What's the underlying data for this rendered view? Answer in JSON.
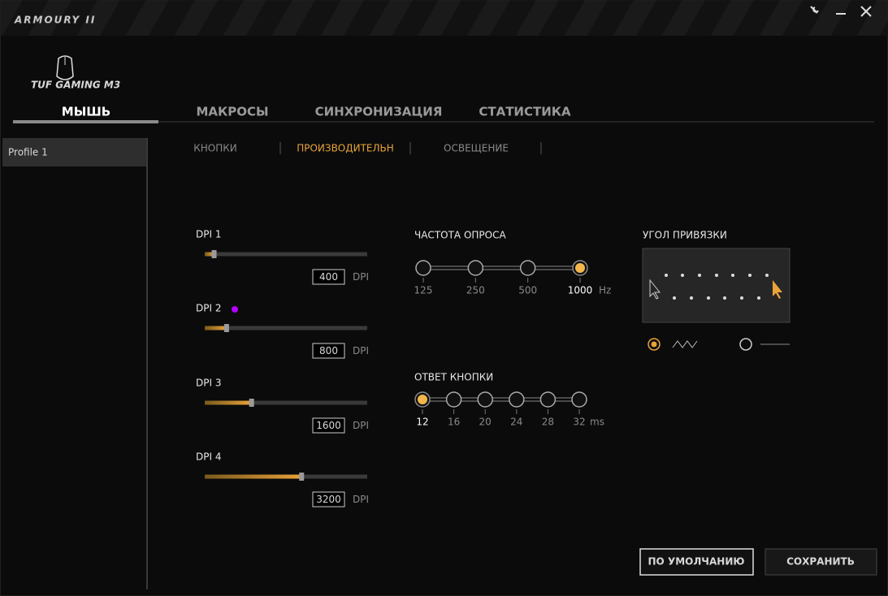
{
  "app": {
    "title": "ARMOURY II"
  },
  "device": {
    "name": "TUF GAMING M3"
  },
  "tabs": [
    "МЫШЬ",
    "МАКРОСЫ",
    "СИНХРОНИЗАЦИЯ",
    "СТАТИСТИКА"
  ],
  "profiles": [
    "Profile 1"
  ],
  "subtabs": [
    "КНОПКИ",
    "ПРОИЗВОДИТЕЛЬН",
    "ОСВЕЩЕНИЕ"
  ],
  "dpi": {
    "unit": "DPI",
    "range": [
      100,
      5300
    ],
    "levels": [
      {
        "label": "DPI 1",
        "value": 400
      },
      {
        "label": "DPI 2",
        "value": 800,
        "indicator": "#b400ff"
      },
      {
        "label": "DPI 3",
        "value": 1600
      },
      {
        "label": "DPI 4",
        "value": 3200
      }
    ]
  },
  "polling": {
    "title": "ЧАСТОТА ОПРОСА",
    "options": [
      125,
      250,
      500,
      1000
    ],
    "selected": 1000,
    "unit": "Hz"
  },
  "response": {
    "title": "ОТВЕТ КНОПКИ",
    "options": [
      12,
      16,
      20,
      24,
      28,
      32
    ],
    "selected": 12,
    "unit": "ms"
  },
  "angle": {
    "title": "УГОЛ ПРИВЯЗКИ"
  },
  "buttons": [
    "ПО УМОЛЧАНИЮ",
    "СОХРАНИТЬ"
  ]
}
